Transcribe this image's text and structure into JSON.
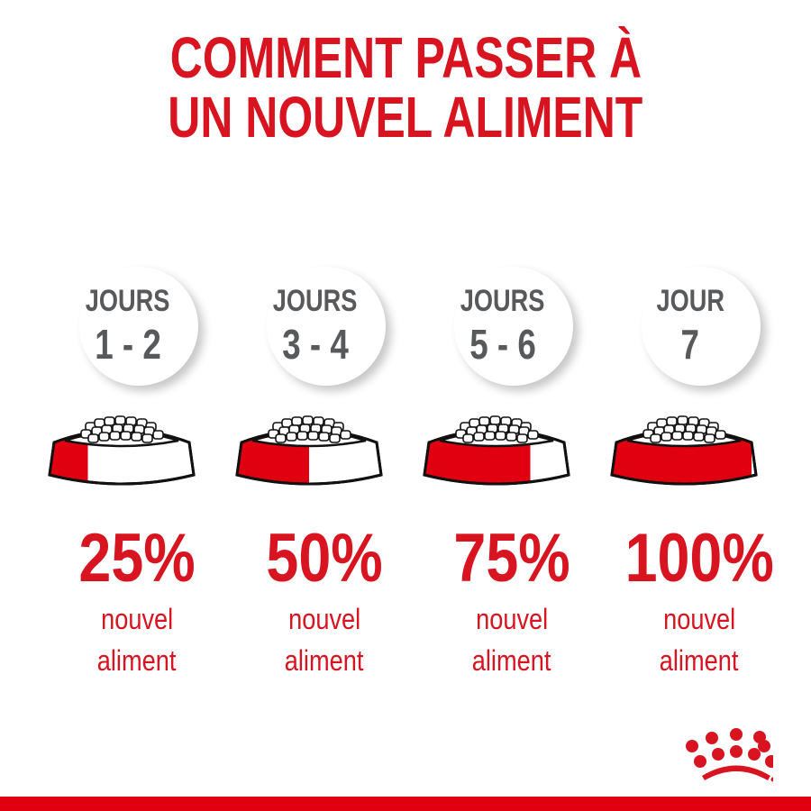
{
  "title": {
    "line1": "COMMENT PASSER À",
    "line2": "UN NOUVEL ALIMENT"
  },
  "steps": [
    {
      "label": "JOURS",
      "days": "1 - 2",
      "percent": "25%",
      "new_fraction": 0.25,
      "caption1": "nouvel",
      "caption2": "aliment"
    },
    {
      "label": "JOURS",
      "days": "3 - 4",
      "percent": "50%",
      "new_fraction": 0.5,
      "caption1": "nouvel",
      "caption2": "aliment"
    },
    {
      "label": "JOURS",
      "days": "5 - 6",
      "percent": "75%",
      "new_fraction": 0.75,
      "caption1": "nouvel",
      "caption2": "aliment"
    },
    {
      "label": "JOUR",
      "days": "7",
      "percent": "100%",
      "new_fraction": 1.0,
      "caption1": "nouvel",
      "caption2": "aliment"
    }
  ],
  "logo": {
    "name": "Royal Canin crown logo",
    "icon": "crown-logo-icon"
  },
  "colors": {
    "accent": "#d7141f",
    "day_text": "#58595b",
    "bottom_bar": "#e1000f"
  }
}
